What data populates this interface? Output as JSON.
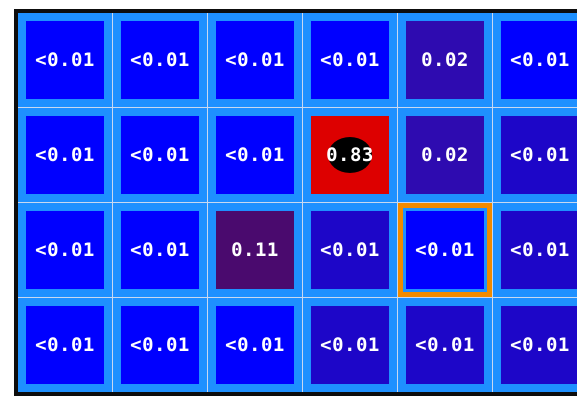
{
  "colors": {
    "frame": "#0d0d0d",
    "cell_border": "#1e90ff",
    "grid_line": "#c8d8f0",
    "highlight": "#f08a00",
    "agent": "#000000"
  },
  "grid": [
    [
      {
        "label": "<0.01",
        "color": "#0000ff"
      },
      {
        "label": "<0.01",
        "color": "#0000ff"
      },
      {
        "label": "<0.01",
        "color": "#0000ff"
      },
      {
        "label": "<0.01",
        "color": "#0000ff"
      },
      {
        "label": "0.02",
        "color": "#2e0bb0"
      },
      {
        "label": "<0.01",
        "color": "#0000ff"
      }
    ],
    [
      {
        "label": "<0.01",
        "color": "#0000ff"
      },
      {
        "label": "<0.01",
        "color": "#0000ff"
      },
      {
        "label": "<0.01",
        "color": "#0000ff"
      },
      {
        "label": "0.83",
        "color": "#dd0000",
        "agent": true
      },
      {
        "label": "0.02",
        "color": "#2e0bb0"
      },
      {
        "label": "<0.01",
        "color": "#1d06c8"
      }
    ],
    [
      {
        "label": "<0.01",
        "color": "#0000ff"
      },
      {
        "label": "<0.01",
        "color": "#0000ff"
      },
      {
        "label": "0.11",
        "color": "#4a0a6e"
      },
      {
        "label": "<0.01",
        "color": "#1d06c8"
      },
      {
        "label": "<0.01",
        "color": "#0000ff",
        "highlighted": true
      },
      {
        "label": "<0.01",
        "color": "#1d06c8"
      }
    ],
    [
      {
        "label": "<0.01",
        "color": "#0000ff"
      },
      {
        "label": "<0.01",
        "color": "#0000ff"
      },
      {
        "label": "<0.01",
        "color": "#0000ff"
      },
      {
        "label": "<0.01",
        "color": "#1d06c8"
      },
      {
        "label": "<0.01",
        "color": "#1d06c8"
      },
      {
        "label": "<0.01",
        "color": "#1d06c8"
      }
    ]
  ]
}
